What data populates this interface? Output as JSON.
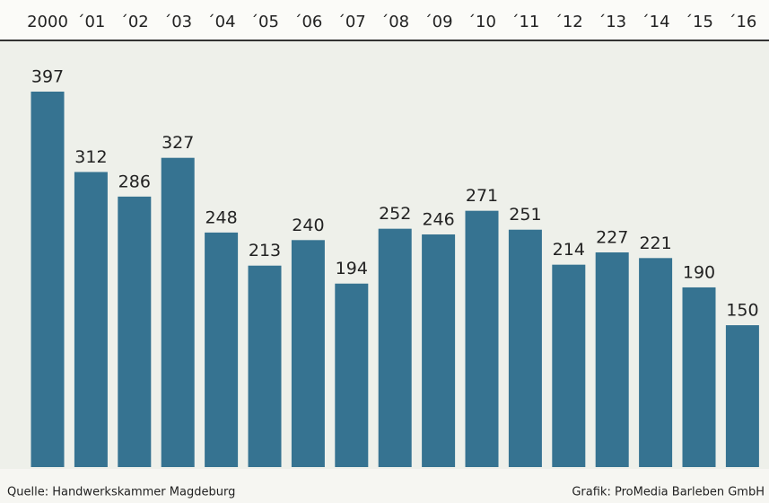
{
  "chart_data": {
    "type": "bar",
    "categories": [
      "2000",
      "´01",
      "´02",
      "´03",
      "´04",
      "´05",
      "´06",
      "´07",
      "´08",
      "´09",
      "´10",
      "´11",
      "´12",
      "´13",
      "´14",
      "´15",
      "´16"
    ],
    "values": [
      397,
      312,
      286,
      327,
      248,
      213,
      240,
      194,
      252,
      246,
      271,
      251,
      214,
      227,
      221,
      190,
      150
    ],
    "color": "#367391",
    "source": "Quelle: Handwerkskammer Magdeburg",
    "credit": "Grafik: ProMedia Barleben GmbH"
  }
}
